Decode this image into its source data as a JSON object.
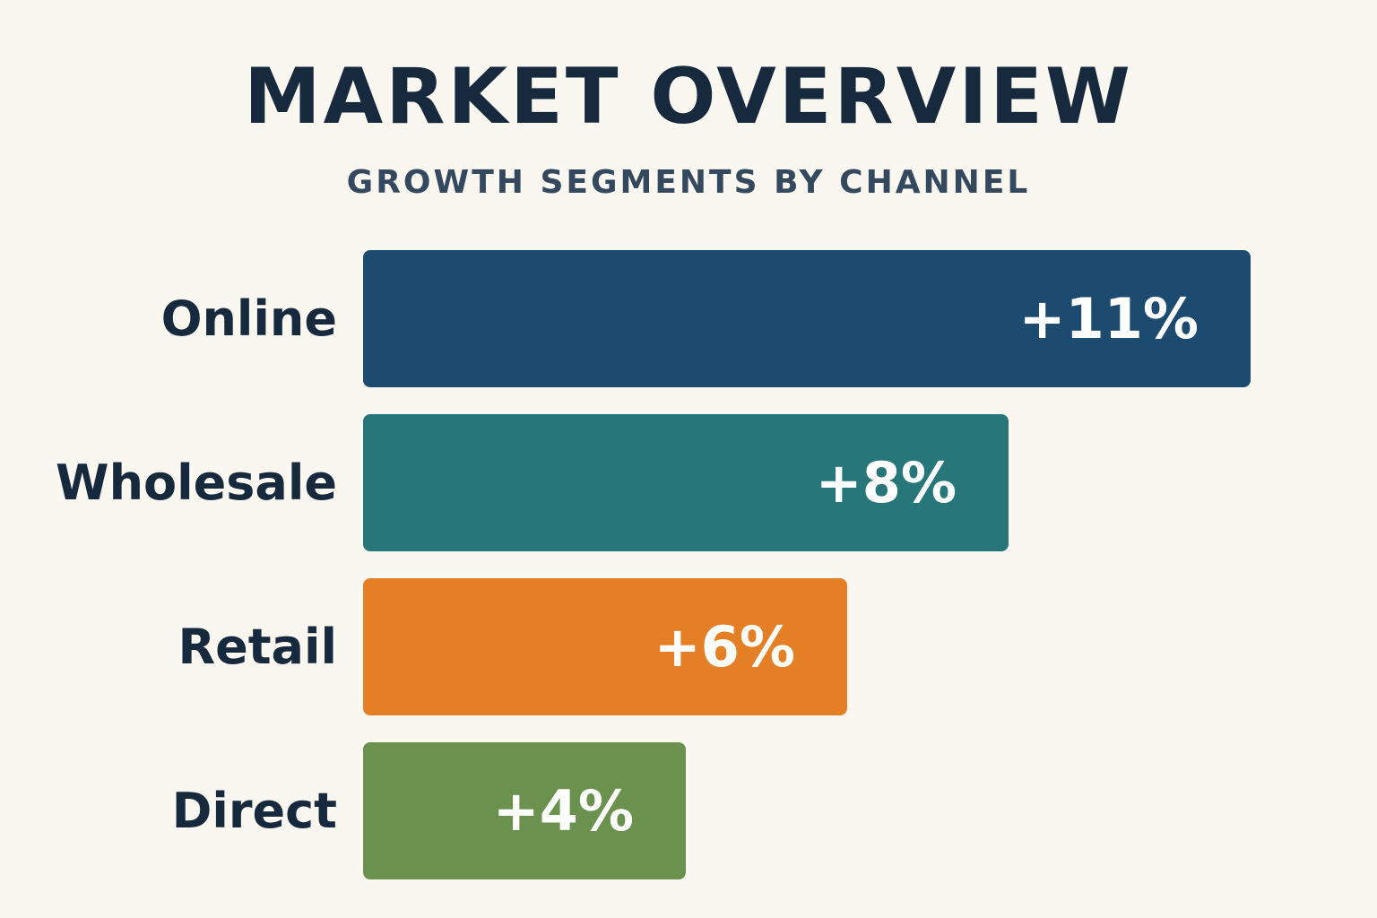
{
  "chart_data": {
    "type": "bar",
    "orientation": "horizontal",
    "title": "MARKET OVERVIEW",
    "subtitle": "GROWTH SEGMENTS BY CHANNEL",
    "categories": [
      "Online",
      "Wholesale",
      "Retail",
      "Direct"
    ],
    "values": [
      11,
      8,
      6,
      4
    ],
    "value_labels": [
      "+11%",
      "+8%",
      "+6%",
      "+4%"
    ],
    "colors": [
      "#1D4B70",
      "#26767A",
      "#E47F25",
      "#6A914E"
    ],
    "unit": "%",
    "grid": false,
    "legend": "none"
  },
  "colors": {
    "background": "#FAF6F0",
    "title": "#17293D",
    "subtitle": "#34495E",
    "value_text": "#FFFFFF"
  }
}
